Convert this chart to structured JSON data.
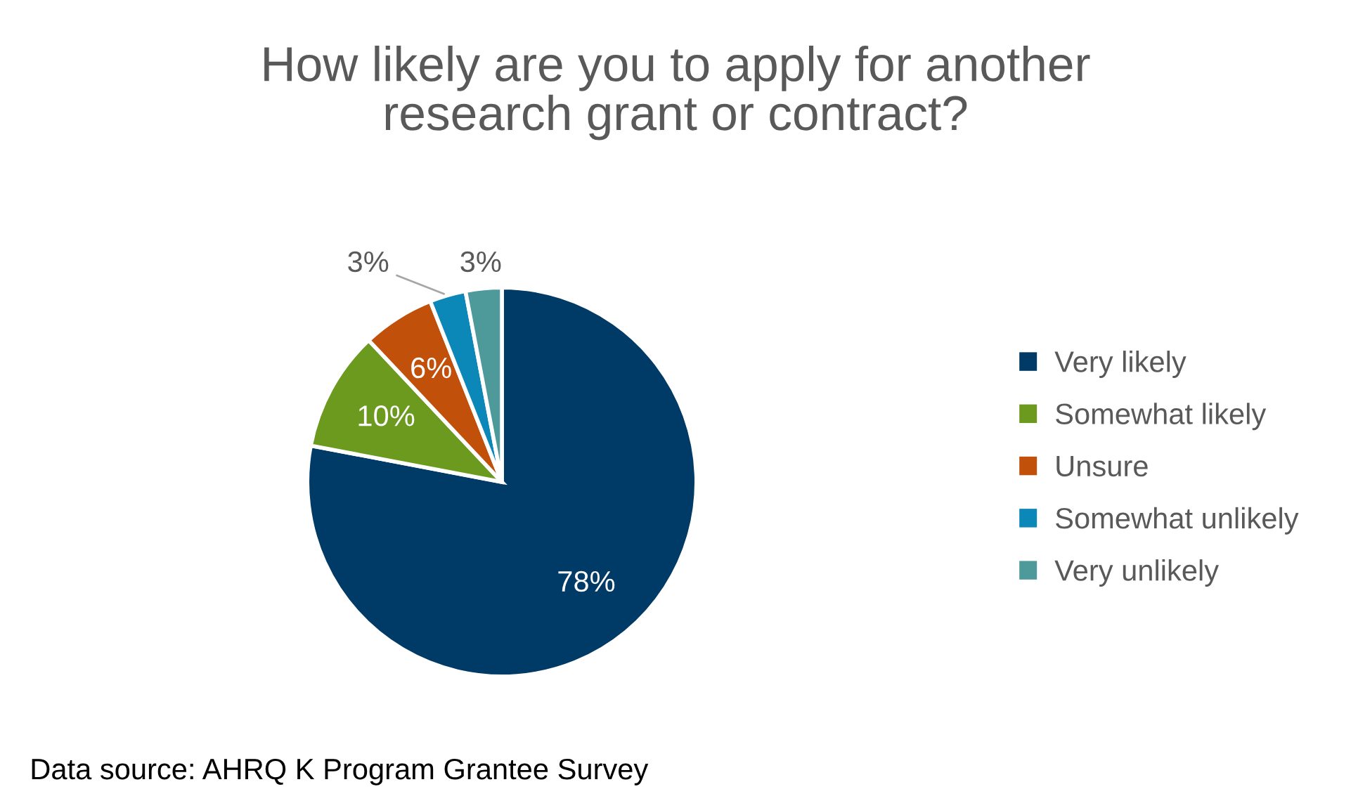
{
  "chart_data": {
    "type": "pie",
    "title": "How likely are you to apply for another\nresearch grant or contract?",
    "categories": [
      "Very likely",
      "Somewhat likely",
      "Unsure",
      "Somewhat unlikely",
      "Very unlikely"
    ],
    "values": [
      78,
      10,
      6,
      3,
      3
    ],
    "colors": [
      "#003a66",
      "#6b9a1f",
      "#c0500a",
      "#0b87b8",
      "#4e9a9a"
    ],
    "value_labels": [
      "78%",
      "10%",
      "6%",
      "3%",
      "3%"
    ],
    "legend": "right",
    "annotations": [
      "Data source: AHRQ K Program Grantee Survey"
    ]
  }
}
